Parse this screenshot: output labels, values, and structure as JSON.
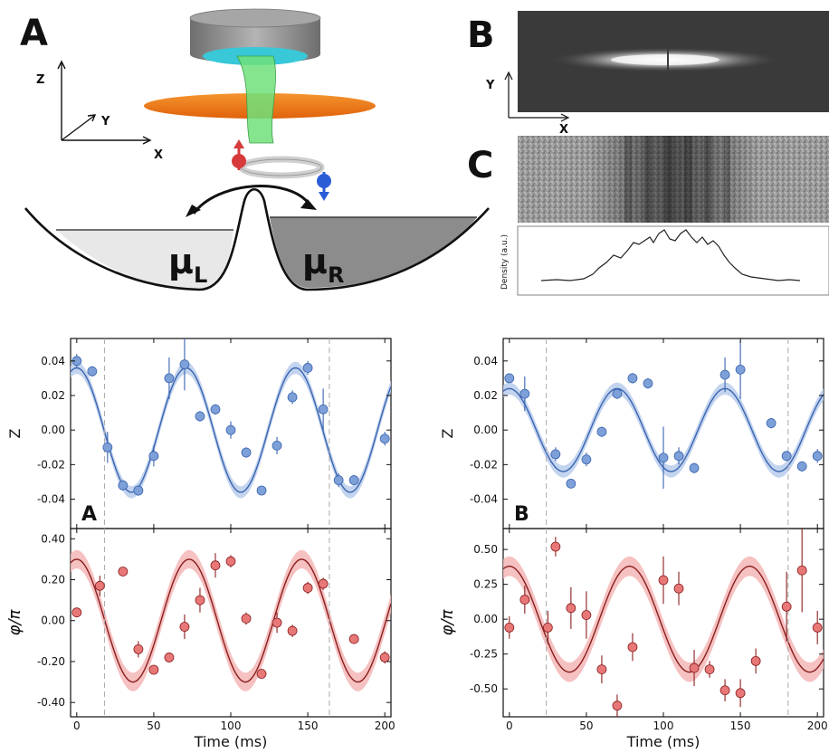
{
  "figure_top": {
    "panel_a_label": "A",
    "panel_b_label": "B",
    "panel_c_label": "C",
    "axis_z": "Z",
    "axis_y": "Y",
    "axis_x": "X",
    "panel_b_axis_y": "Y",
    "panel_b_axis_x": "X",
    "mu_left": "μ",
    "mu_left_sub": "L",
    "mu_right": "μ",
    "mu_right_sub": "R",
    "density_label": "Density (a.u.)"
  },
  "colors": {
    "blue_marker": "#7da0d8",
    "blue_line": "#3a64b0",
    "blue_band": "#b8ccec",
    "red_marker": "#e87878",
    "red_line": "#8a1e1e",
    "red_band": "#f4b6b6",
    "mirror_gray": "#8a8a8a",
    "cyan_disc": "#38c8d8",
    "orange_beam": "#f07a1a",
    "green_beam": "#6fe07a",
    "well_right": "#8c8c8c",
    "well_left": "#e8e8e8"
  },
  "chart_data": [
    {
      "type": "scatter",
      "panel": "A",
      "quantity": "Z",
      "ylabel": "Z",
      "xlabel": "",
      "xlim": [
        -4,
        204
      ],
      "ylim": [
        -0.057,
        0.053
      ],
      "yticks": [
        "0.04",
        "0.02",
        "0.00",
        "-0.02",
        "-0.04"
      ],
      "ytick_values": [
        0.04,
        0.02,
        0.0,
        -0.02,
        -0.04
      ],
      "vlines": [
        18,
        164
      ],
      "fit": {
        "amplitude": 0.036,
        "period": 71,
        "phase_zero_t": 0
      },
      "points": [
        {
          "x": 0,
          "y": 0.04,
          "err": 0.004
        },
        {
          "x": 10,
          "y": 0.034,
          "err": 0.003
        },
        {
          "x": 20,
          "y": -0.01,
          "err": 0.009
        },
        {
          "x": 30,
          "y": -0.032,
          "err": 0.003
        },
        {
          "x": 40,
          "y": -0.035,
          "err": 0.003
        },
        {
          "x": 50,
          "y": -0.015,
          "err": 0.006
        },
        {
          "x": 60,
          "y": 0.03,
          "err": 0.012
        },
        {
          "x": 70,
          "y": 0.038,
          "err": 0.015
        },
        {
          "x": 80,
          "y": 0.008,
          "err": 0.003
        },
        {
          "x": 90,
          "y": 0.012,
          "err": 0.003
        },
        {
          "x": 100,
          "y": 0.0,
          "err": 0.005
        },
        {
          "x": 110,
          "y": -0.013,
          "err": 0.003
        },
        {
          "x": 120,
          "y": -0.035,
          "err": 0.002
        },
        {
          "x": 130,
          "y": -0.009,
          "err": 0.005
        },
        {
          "x": 140,
          "y": 0.019,
          "err": 0.004
        },
        {
          "x": 150,
          "y": 0.036,
          "err": 0.004
        },
        {
          "x": 160,
          "y": 0.012,
          "err": 0.012
        },
        {
          "x": 170,
          "y": -0.029,
          "err": 0.004
        },
        {
          "x": 180,
          "y": -0.029,
          "err": 0.003
        },
        {
          "x": 200,
          "y": -0.005,
          "err": 0.004
        }
      ]
    },
    {
      "type": "scatter",
      "panel": "A",
      "quantity": "phi",
      "ylabel": "φ/π",
      "xlabel": "Time (ms)",
      "xlim": [
        -4,
        204
      ],
      "ylim": [
        -0.47,
        0.45
      ],
      "yticks": [
        "0.40",
        "0.20",
        "0.00",
        "-0.20",
        "-0.40"
      ],
      "ytick_values": [
        0.4,
        0.2,
        0.0,
        -0.2,
        -0.4
      ],
      "xticks": [
        0,
        50,
        100,
        150,
        200
      ],
      "vlines": [
        18,
        164
      ],
      "fit": {
        "amplitude": 0.3,
        "period": 73,
        "phase_zero_t": 0
      },
      "points": [
        {
          "x": 0,
          "y": 0.04,
          "err": 0.0
        },
        {
          "x": 15,
          "y": 0.17,
          "err": 0.05
        },
        {
          "x": 30,
          "y": 0.24,
          "err": 0.02
        },
        {
          "x": 40,
          "y": -0.14,
          "err": 0.04
        },
        {
          "x": 50,
          "y": -0.24,
          "err": 0.02
        },
        {
          "x": 60,
          "y": -0.18,
          "err": 0.02
        },
        {
          "x": 70,
          "y": -0.03,
          "err": 0.06
        },
        {
          "x": 80,
          "y": 0.1,
          "err": 0.06
        },
        {
          "x": 90,
          "y": 0.27,
          "err": 0.06
        },
        {
          "x": 100,
          "y": 0.29,
          "err": 0.03
        },
        {
          "x": 110,
          "y": 0.01,
          "err": 0.03
        },
        {
          "x": 120,
          "y": -0.26,
          "err": 0.02
        },
        {
          "x": 130,
          "y": -0.01,
          "err": 0.05
        },
        {
          "x": 140,
          "y": -0.05,
          "err": 0.03
        },
        {
          "x": 150,
          "y": 0.16,
          "err": 0.03
        },
        {
          "x": 160,
          "y": 0.18,
          "err": 0.03
        },
        {
          "x": 180,
          "y": -0.09,
          "err": 0.02
        },
        {
          "x": 200,
          "y": -0.18,
          "err": 0.03
        }
      ]
    },
    {
      "type": "scatter",
      "panel": "B",
      "quantity": "Z",
      "ylabel": "Z",
      "xlabel": "",
      "xlim": [
        -4,
        204
      ],
      "ylim": [
        -0.057,
        0.053
      ],
      "yticks": [
        "0.04",
        "0.02",
        "0.00",
        "-0.02",
        "-0.04"
      ],
      "ytick_values": [
        0.04,
        0.02,
        0.0,
        -0.02,
        -0.04
      ],
      "vlines": [
        24,
        181
      ],
      "fit": {
        "amplitude": 0.024,
        "period": 70,
        "phase_zero_t": 0
      },
      "points": [
        {
          "x": 0,
          "y": 0.03,
          "err": 0.0
        },
        {
          "x": 10,
          "y": 0.021,
          "err": 0.01
        },
        {
          "x": 30,
          "y": -0.014,
          "err": 0.004
        },
        {
          "x": 40,
          "y": -0.031,
          "err": 0.002
        },
        {
          "x": 50,
          "y": -0.017,
          "err": 0.004
        },
        {
          "x": 60,
          "y": -0.001,
          "err": 0.003
        },
        {
          "x": 70,
          "y": 0.021,
          "err": 0.003
        },
        {
          "x": 80,
          "y": 0.03,
          "err": 0.003
        },
        {
          "x": 90,
          "y": 0.027,
          "err": 0.003
        },
        {
          "x": 100,
          "y": -0.016,
          "err": 0.018
        },
        {
          "x": 110,
          "y": -0.015,
          "err": 0.005
        },
        {
          "x": 120,
          "y": -0.022,
          "err": 0.003
        },
        {
          "x": 140,
          "y": 0.032,
          "err": 0.01
        },
        {
          "x": 150,
          "y": 0.035,
          "err": 0.017
        },
        {
          "x": 170,
          "y": 0.004,
          "err": 0.003
        },
        {
          "x": 180,
          "y": -0.015,
          "err": 0.003
        },
        {
          "x": 190,
          "y": -0.021,
          "err": 0.003
        },
        {
          "x": 200,
          "y": -0.015,
          "err": 0.004
        }
      ]
    },
    {
      "type": "scatter",
      "panel": "B",
      "quantity": "phi",
      "ylabel": "φ/π",
      "xlabel": "Time (ms)",
      "xlim": [
        -4,
        204
      ],
      "ylim": [
        -0.7,
        0.65
      ],
      "yticks": [
        "0.50",
        "0.25",
        "0.00",
        "-0.25",
        "-0.50"
      ],
      "ytick_values": [
        0.5,
        0.25,
        0.0,
        -0.25,
        -0.5
      ],
      "xticks": [
        0,
        50,
        100,
        150,
        200
      ],
      "vlines": [
        24,
        181
      ],
      "fit": {
        "amplitude": 0.38,
        "period": 78,
        "phase_zero_t": 0
      },
      "points": [
        {
          "x": 0,
          "y": -0.06,
          "err": 0.08
        },
        {
          "x": 10,
          "y": 0.14,
          "err": 0.1
        },
        {
          "x": 25,
          "y": -0.06,
          "err": 0.12
        },
        {
          "x": 30,
          "y": 0.52,
          "err": 0.07
        },
        {
          "x": 40,
          "y": 0.08,
          "err": 0.15
        },
        {
          "x": 50,
          "y": 0.03,
          "err": 0.17
        },
        {
          "x": 60,
          "y": -0.36,
          "err": 0.1
        },
        {
          "x": 70,
          "y": -0.62,
          "err": 0.08
        },
        {
          "x": 80,
          "y": -0.2,
          "err": 0.1
        },
        {
          "x": 100,
          "y": 0.28,
          "err": 0.17
        },
        {
          "x": 110,
          "y": 0.22,
          "err": 0.12
        },
        {
          "x": 120,
          "y": -0.35,
          "err": 0.13
        },
        {
          "x": 130,
          "y": -0.36,
          "err": 0.06
        },
        {
          "x": 140,
          "y": -0.51,
          "err": 0.08
        },
        {
          "x": 150,
          "y": -0.53,
          "err": 0.1
        },
        {
          "x": 160,
          "y": -0.3,
          "err": 0.09
        },
        {
          "x": 180,
          "y": 0.09,
          "err": 0.25
        },
        {
          "x": 190,
          "y": 0.35,
          "err": 0.3
        },
        {
          "x": 200,
          "y": -0.06,
          "err": 0.12
        }
      ]
    }
  ],
  "panel_letters_bottom": {
    "left": "A",
    "right": "B"
  }
}
